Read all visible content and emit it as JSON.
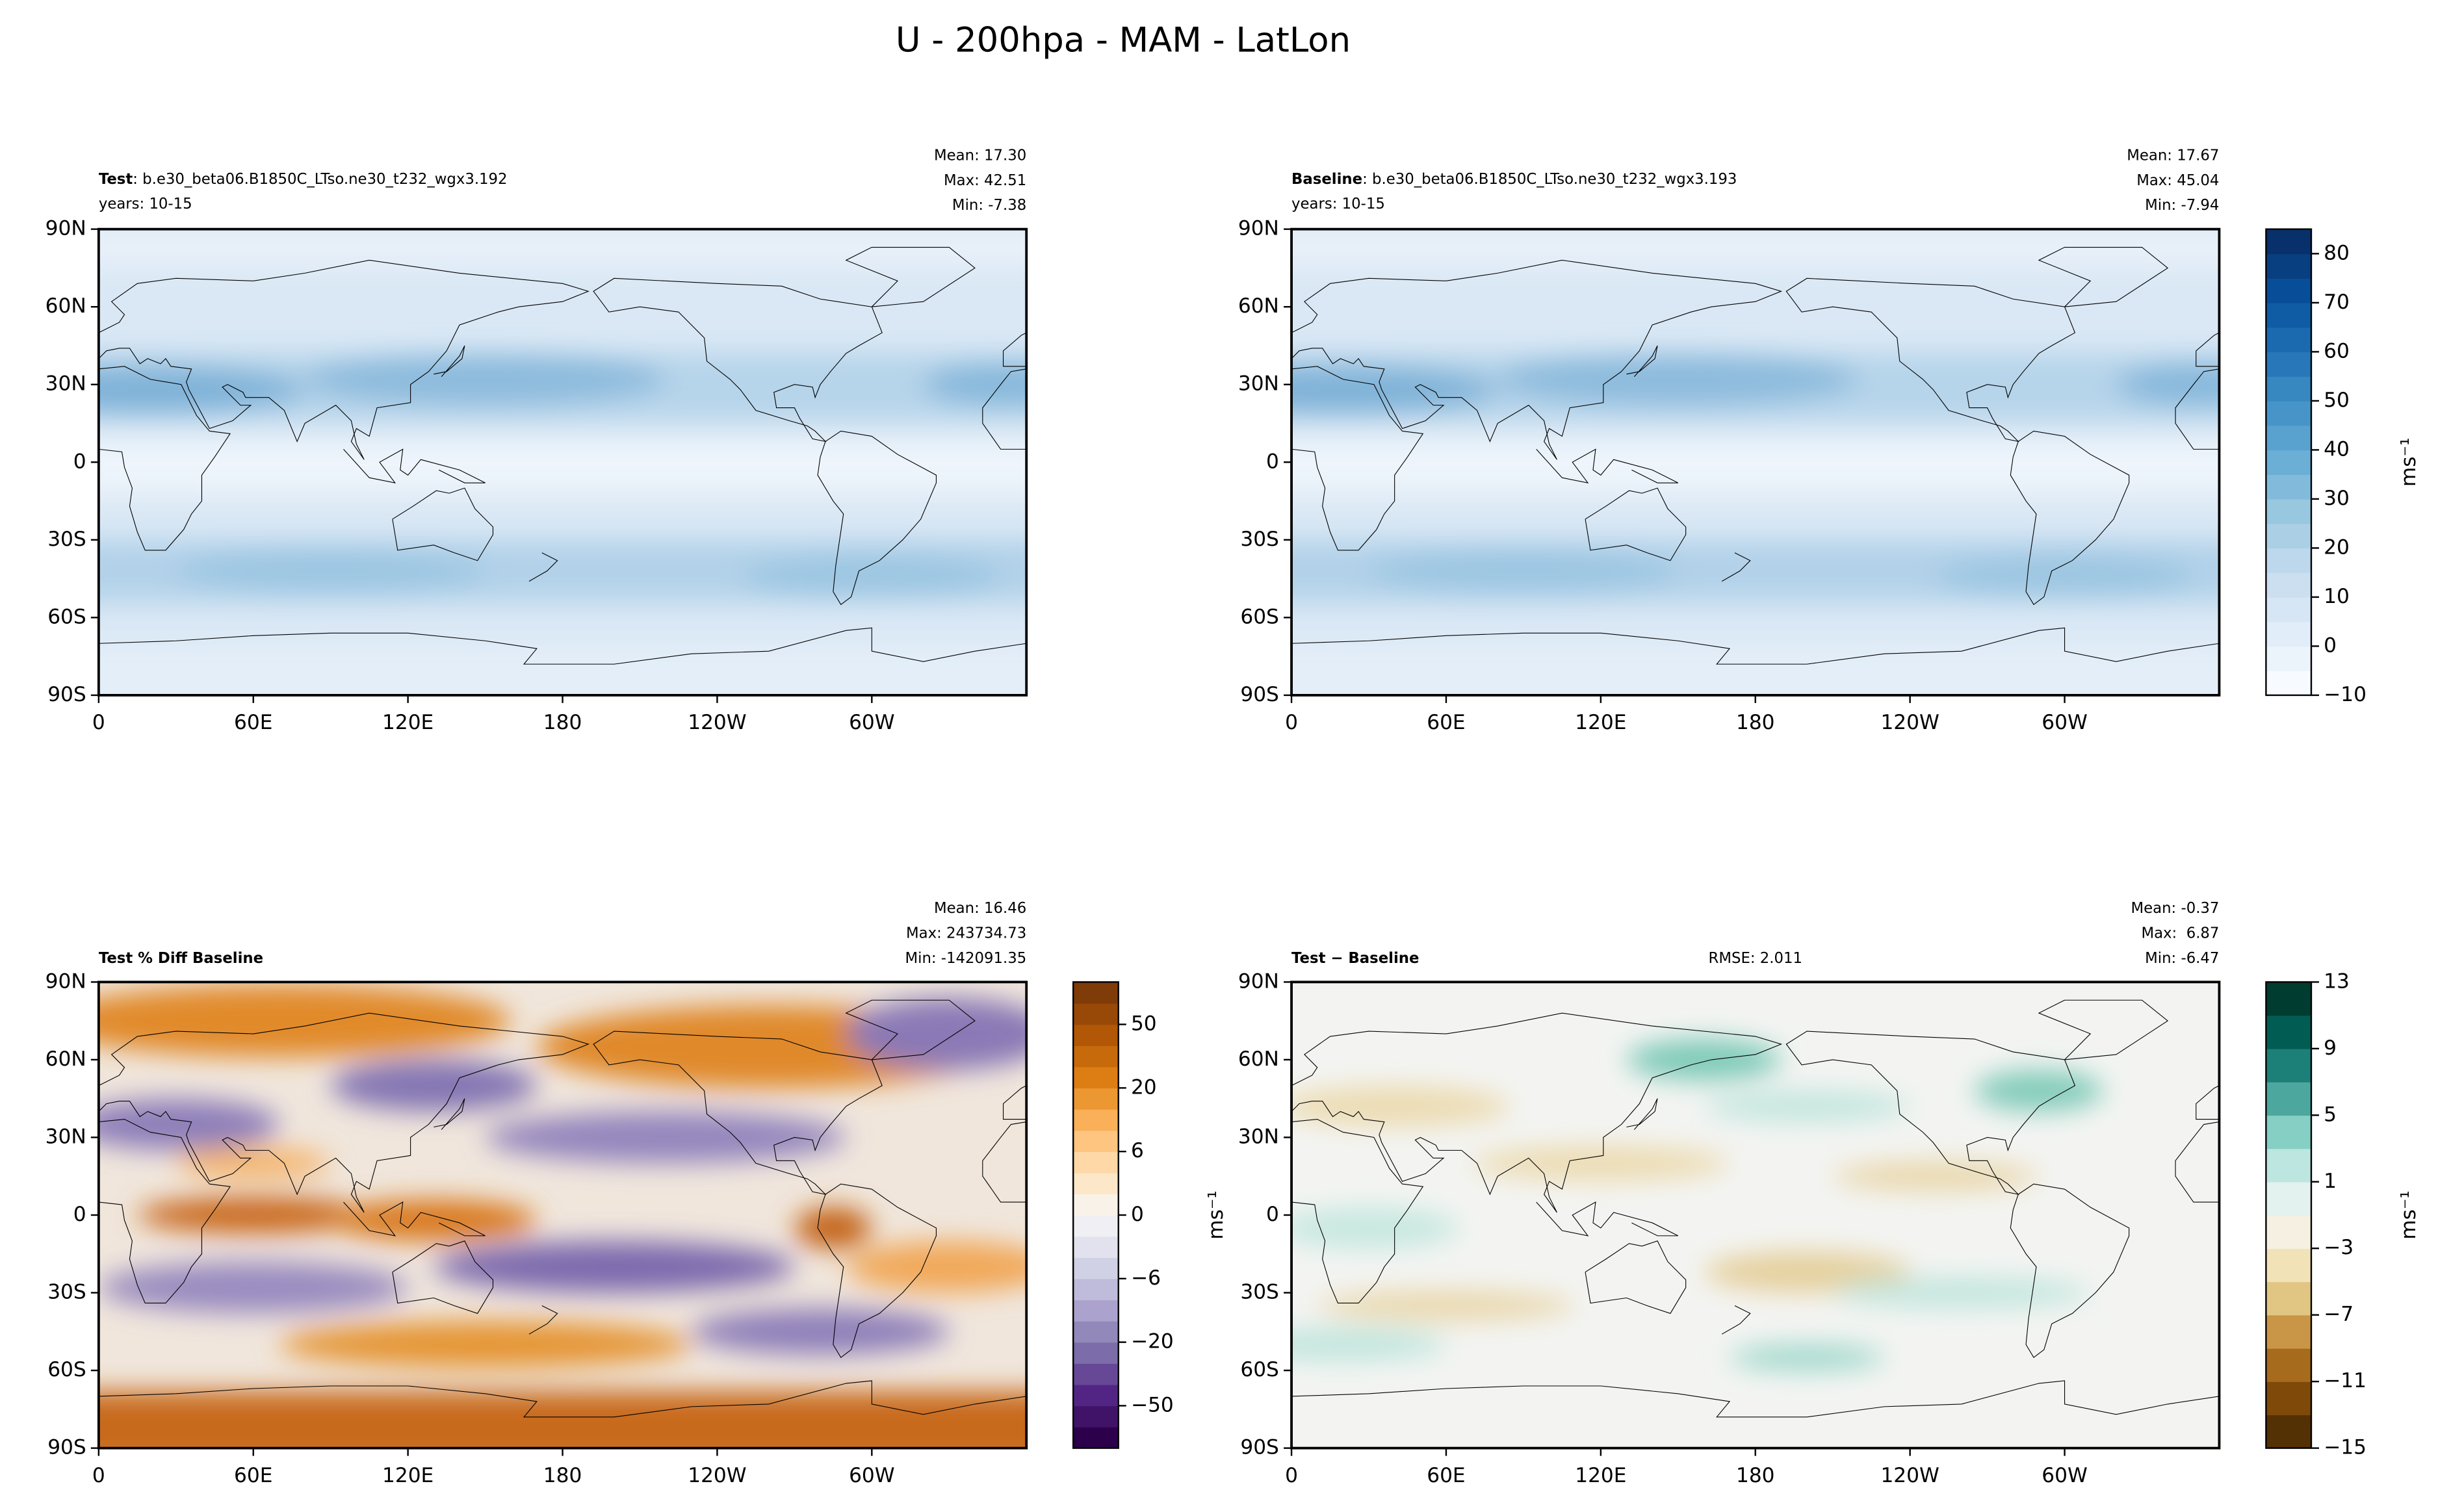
{
  "title": "U - 200hpa - MAM - LatLon",
  "chart_data": [
    {
      "type": "contour-map",
      "case_label": "Test",
      "case_name": ": b.e30_beta06.B1850C_LTso.ne30_t232_wgx3.192",
      "years": "years: 10-15",
      "stats": [
        "Mean: 17.30",
        "Max: 42.51",
        "Min: -7.38"
      ],
      "xlim": [
        0,
        360
      ],
      "ylim": [
        -90,
        90
      ],
      "xticks": [
        0,
        {
          "value": 60,
          "label": "60E"
        },
        {
          "value": 120,
          "label": "120E"
        },
        180,
        {
          "value": 240,
          "label": "120W"
        },
        {
          "value": 300,
          "label": "60W"
        }
      ],
      "yticks": [
        {
          "value": -90,
          "label": "90S"
        },
        {
          "value": -60,
          "label": "60S"
        },
        {
          "value": -30,
          "label": "30S"
        },
        0,
        {
          "value": 30,
          "label": "30N"
        },
        {
          "value": 60,
          "label": "60N"
        },
        {
          "value": 90,
          "label": "90N"
        }
      ]
    },
    {
      "type": "contour-map",
      "case_label": "Baseline",
      "case_name": ": b.e30_beta06.B1850C_LTso.ne30_t232_wgx3.193",
      "years": "years: 10-15",
      "stats": [
        "Mean: 17.67",
        "Max: 45.04",
        "Min: -7.94"
      ],
      "xlim": [
        0,
        360
      ],
      "ylim": [
        -90,
        90
      ],
      "xticks": [
        0,
        {
          "value": 60,
          "label": "60E"
        },
        {
          "value": 120,
          "label": "120E"
        },
        180,
        {
          "value": 240,
          "label": "120W"
        },
        {
          "value": 300,
          "label": "60W"
        }
      ],
      "yticks": [
        {
          "value": -90,
          "label": "90S"
        },
        {
          "value": -60,
          "label": "60S"
        },
        {
          "value": -30,
          "label": "30S"
        },
        0,
        {
          "value": 30,
          "label": "30N"
        },
        {
          "value": 60,
          "label": "60N"
        },
        {
          "value": 90,
          "label": "90N"
        }
      ],
      "colorbar": {
        "label": "ms⁻¹",
        "levels": [
          -10,
          -5,
          0,
          5,
          10,
          15,
          20,
          25,
          30,
          35,
          40,
          45,
          50,
          55,
          60,
          65,
          70,
          75,
          80,
          85
        ],
        "ticks": [
          {
            "value": -10,
            "label": "−10"
          },
          0,
          10,
          20,
          30,
          40,
          50,
          60,
          70,
          80
        ],
        "cmap": [
          "#f7fbff",
          "#deebf7",
          "#c6dbef",
          "#9ecae1",
          "#6baed6",
          "#4292c6",
          "#2171b5",
          "#08519c",
          "#08306b"
        ]
      }
    },
    {
      "type": "contour-map",
      "title": "Test % Diff Baseline",
      "stats": [
        "Mean: 16.46",
        "Max: 243734.73",
        "Min: -142091.35"
      ],
      "xlim": [
        0,
        360
      ],
      "ylim": [
        -90,
        90
      ],
      "xticks": [
        0,
        {
          "value": 60,
          "label": "60E"
        },
        {
          "value": 120,
          "label": "120E"
        },
        180,
        {
          "value": 240,
          "label": "120W"
        },
        {
          "value": 300,
          "label": "60W"
        }
      ],
      "yticks": [
        {
          "value": -90,
          "label": "90S"
        },
        {
          "value": -60,
          "label": "60S"
        },
        {
          "value": -30,
          "label": "30S"
        },
        0,
        {
          "value": 30,
          "label": "30N"
        },
        {
          "value": 60,
          "label": "60N"
        },
        {
          "value": 90,
          "label": "90N"
        }
      ],
      "colorbar": {
        "label": "ms⁻¹",
        "levels": [
          -100,
          -75,
          -50,
          -40,
          -30,
          -20,
          -15,
          -10,
          -6,
          -4,
          -2,
          0,
          2,
          4,
          6,
          10,
          15,
          20,
          30,
          40,
          50,
          75,
          100
        ],
        "ticks": [
          {
            "value": -50,
            "label": "−50"
          },
          {
            "value": -20,
            "label": "−20"
          },
          {
            "value": -6,
            "label": "−6"
          },
          0,
          6,
          20,
          50
        ],
        "cmap": [
          "#2d004b",
          "#542788",
          "#8073ac",
          "#b2abd2",
          "#d8daeb",
          "#f7f7f7",
          "#fee0b6",
          "#fdb863",
          "#e08214",
          "#b35806",
          "#7f3b08"
        ]
      }
    },
    {
      "type": "contour-map",
      "title": "Test − Baseline",
      "rmse": "RMSE: 2.011",
      "stats": [
        "Mean: -0.37",
        "Max:  6.87",
        "Min: -6.47"
      ],
      "xlim": [
        0,
        360
      ],
      "ylim": [
        -90,
        90
      ],
      "xticks": [
        0,
        {
          "value": 60,
          "label": "60E"
        },
        {
          "value": 120,
          "label": "120E"
        },
        180,
        {
          "value": 240,
          "label": "120W"
        },
        {
          "value": 300,
          "label": "60W"
        }
      ],
      "yticks": [
        {
          "value": -90,
          "label": "90S"
        },
        {
          "value": -60,
          "label": "60S"
        },
        {
          "value": -30,
          "label": "30S"
        },
        0,
        {
          "value": 30,
          "label": "30N"
        },
        {
          "value": 60,
          "label": "60N"
        },
        {
          "value": 90,
          "label": "90N"
        }
      ],
      "colorbar": {
        "label": "ms⁻¹",
        "levels": [
          -15,
          -13,
          -11,
          -9,
          -7,
          -5,
          -3,
          -1,
          1,
          3,
          5,
          7,
          9,
          11,
          13
        ],
        "ticks": [
          {
            "value": -15,
            "label": "−15"
          },
          {
            "value": -11,
            "label": "−11"
          },
          {
            "value": -7,
            "label": "−7"
          },
          {
            "value": -3,
            "label": "−3"
          },
          1,
          5,
          9,
          13
        ],
        "cmap": [
          "#543005",
          "#8c510a",
          "#bf812d",
          "#dfc27d",
          "#f6e8c3",
          "#f5f5f5",
          "#c7eae5",
          "#80cdc1",
          "#35978f",
          "#01665e",
          "#003c30"
        ]
      }
    }
  ]
}
